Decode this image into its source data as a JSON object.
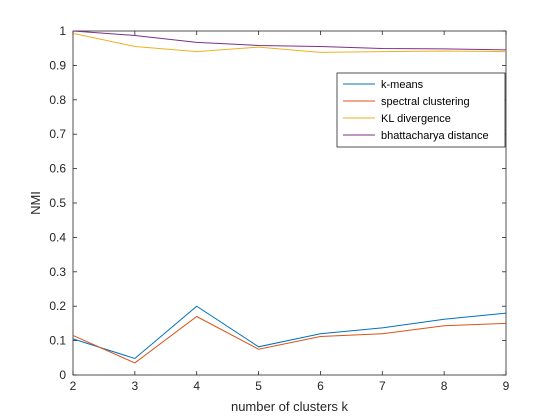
{
  "chart_data": {
    "type": "line",
    "xlabel": "number of clusters k",
    "ylabel": "NMI",
    "xlim": [
      2,
      9
    ],
    "ylim": [
      0,
      1
    ],
    "x": [
      2,
      3,
      4,
      5,
      6,
      7,
      8,
      9
    ],
    "xticks": [
      "2",
      "3",
      "4",
      "5",
      "6",
      "7",
      "8",
      "9"
    ],
    "yticks": [
      "0",
      "0.1",
      "0.2",
      "0.3",
      "0.4",
      "0.5",
      "0.6",
      "0.7",
      "0.8",
      "0.9",
      "1"
    ],
    "legend_position": "top-right",
    "grid": false,
    "series": [
      {
        "name": "k-means",
        "color": "#0072BD",
        "values": [
          0.105,
          0.048,
          0.2,
          0.082,
          0.12,
          0.137,
          0.162,
          0.18
        ]
      },
      {
        "name": "spectral clustering",
        "color": "#D95319",
        "values": [
          0.115,
          0.035,
          0.17,
          0.075,
          0.112,
          0.12,
          0.143,
          0.15
        ]
      },
      {
        "name": "KL divergence",
        "color": "#EDB120",
        "values": [
          0.993,
          0.955,
          0.94,
          0.953,
          0.938,
          0.94,
          0.942,
          0.94
        ]
      },
      {
        "name": "bhattacharya distance",
        "color": "#7E2F8E",
        "values": [
          1.0,
          0.987,
          0.967,
          0.958,
          0.955,
          0.949,
          0.948,
          0.945
        ]
      }
    ]
  }
}
